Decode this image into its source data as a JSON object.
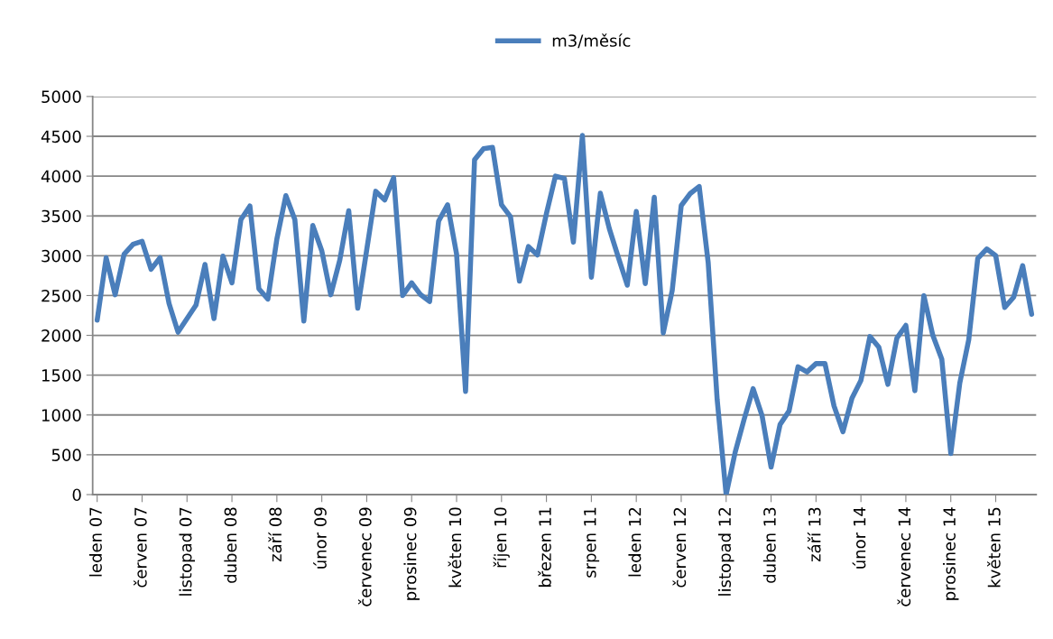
{
  "chart_data": {
    "type": "line",
    "categories": [
      "leden 07",
      null,
      null,
      null,
      null,
      "červen 07",
      null,
      null,
      null,
      null,
      "listopad 07",
      null,
      null,
      null,
      null,
      "duben 08",
      null,
      null,
      null,
      null,
      "září 08",
      null,
      null,
      null,
      null,
      "únor 09",
      null,
      null,
      null,
      null,
      "červenec 09",
      null,
      null,
      null,
      null,
      "prosinec 09",
      null,
      null,
      null,
      null,
      "květen 10",
      null,
      null,
      null,
      null,
      "říjen 10",
      null,
      null,
      null,
      null,
      "březen 11",
      null,
      null,
      null,
      null,
      "srpen 11",
      null,
      null,
      null,
      null,
      "leden 12",
      null,
      null,
      null,
      null,
      "červen 12",
      null,
      null,
      null,
      null,
      "listopad 12",
      null,
      null,
      null,
      null,
      "duben 13",
      null,
      null,
      null,
      null,
      "září 13",
      null,
      null,
      null,
      null,
      "únor 14",
      null,
      null,
      null,
      null,
      "červenec 14",
      null,
      null,
      null,
      null,
      "prosinec 14",
      null,
      null,
      null,
      null,
      "květen 15",
      null,
      null,
      null,
      null
    ],
    "series": [
      {
        "name": "m3/měsíc",
        "color": "#4a7ebb",
        "values": [
          2190,
          2975,
          2510,
          3020,
          3145,
          3180,
          2830,
          2975,
          2400,
          2040,
          2210,
          2380,
          2890,
          2210,
          2995,
          2660,
          3455,
          3625,
          2585,
          2455,
          3210,
          3755,
          3455,
          2180,
          3380,
          3060,
          2510,
          2945,
          3565,
          2340,
          3075,
          3810,
          3700,
          3980,
          2500,
          2660,
          2510,
          2425,
          3435,
          3640,
          3020,
          1295,
          4205,
          4345,
          4360,
          3640,
          3490,
          2680,
          3115,
          3010,
          3530,
          4000,
          3970,
          3170,
          4510,
          2730,
          3785,
          3340,
          2980,
          2630,
          3555,
          2650,
          3735,
          2030,
          2565,
          3630,
          3780,
          3870,
          2915,
          1195,
          0,
          530,
          945,
          1330,
          990,
          345,
          880,
          1050,
          1605,
          1540,
          1645,
          1645,
          1115,
          790,
          1210,
          1435,
          1985,
          1850,
          1385,
          1965,
          2125,
          1305,
          2500,
          2000,
          1700,
          515,
          1400,
          1945,
          2965,
          3085,
          3000,
          2350,
          2480,
          2875,
          2265
        ]
      }
    ],
    "ylim": [
      0,
      5000
    ],
    "yticks": [
      0,
      500,
      1000,
      1500,
      2000,
      2500,
      3000,
      3500,
      4000,
      4500,
      5000
    ],
    "grid": "y",
    "legend": "top",
    "marker": "none",
    "line_style": "solid"
  }
}
